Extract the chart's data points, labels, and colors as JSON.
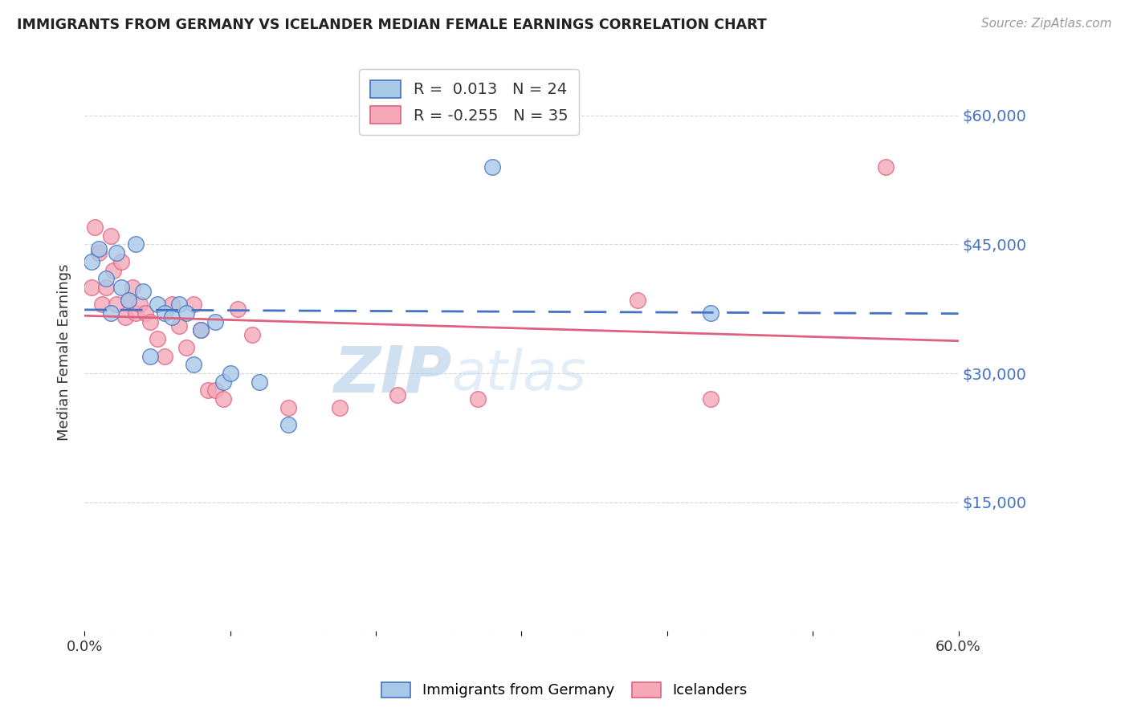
{
  "title": "IMMIGRANTS FROM GERMANY VS ICELANDER MEDIAN FEMALE EARNINGS CORRELATION CHART",
  "source": "Source: ZipAtlas.com",
  "ylabel": "Median Female Earnings",
  "yticks": [
    0,
    15000,
    30000,
    45000,
    60000
  ],
  "ytick_labels": [
    "",
    "$15,000",
    "$30,000",
    "$45,000",
    "$60,000"
  ],
  "xlim": [
    0.0,
    0.6
  ],
  "ylim": [
    0,
    65000
  ],
  "r_germany": 0.013,
  "n_germany": 24,
  "r_iceland": -0.255,
  "n_iceland": 35,
  "color_germany": "#a8c8e8",
  "color_iceland": "#f4a8b8",
  "line_color_germany": "#4472c4",
  "line_color_iceland": "#e06080",
  "watermark_zip": "ZIP",
  "watermark_atlas": "atlas",
  "background_color": "#ffffff",
  "grid_color": "#cccccc",
  "title_color": "#222222",
  "source_color": "#999999",
  "axis_label_color": "#4472c4",
  "germany_x": [
    0.005,
    0.01,
    0.015,
    0.018,
    0.022,
    0.025,
    0.03,
    0.035,
    0.04,
    0.045,
    0.05,
    0.055,
    0.06,
    0.065,
    0.07,
    0.075,
    0.08,
    0.09,
    0.095,
    0.1,
    0.12,
    0.14,
    0.28,
    0.43
  ],
  "germany_y": [
    43000,
    44500,
    41000,
    37000,
    44000,
    40000,
    38500,
    45000,
    39500,
    32000,
    38000,
    37000,
    36500,
    38000,
    37000,
    31000,
    35000,
    36000,
    29000,
    30000,
    29000,
    24000,
    54000,
    37000
  ],
  "iceland_x": [
    0.005,
    0.007,
    0.01,
    0.012,
    0.015,
    0.018,
    0.02,
    0.022,
    0.025,
    0.028,
    0.03,
    0.033,
    0.035,
    0.038,
    0.042,
    0.045,
    0.05,
    0.055,
    0.06,
    0.065,
    0.07,
    0.075,
    0.08,
    0.085,
    0.09,
    0.095,
    0.105,
    0.115,
    0.14,
    0.175,
    0.215,
    0.27,
    0.38,
    0.43,
    0.55
  ],
  "iceland_y": [
    40000,
    47000,
    44000,
    38000,
    40000,
    46000,
    42000,
    38000,
    43000,
    36500,
    38500,
    40000,
    37000,
    38000,
    37000,
    36000,
    34000,
    32000,
    38000,
    35500,
    33000,
    38000,
    35000,
    28000,
    28000,
    27000,
    37500,
    34500,
    26000,
    26000,
    27500,
    27000,
    38500,
    27000,
    54000
  ]
}
